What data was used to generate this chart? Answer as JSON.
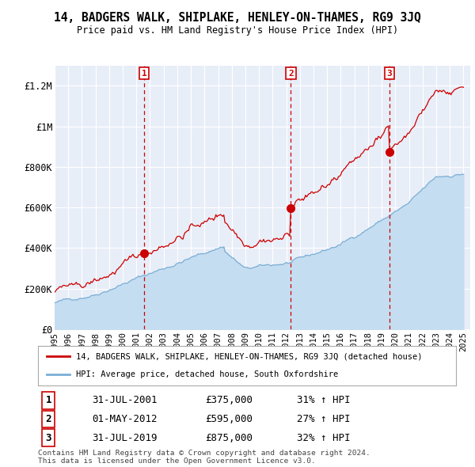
{
  "title": "14, BADGERS WALK, SHIPLAKE, HENLEY-ON-THAMES, RG9 3JQ",
  "subtitle": "Price paid vs. HM Land Registry's House Price Index (HPI)",
  "ylim": [
    0,
    1300000
  ],
  "yticks": [
    0,
    200000,
    400000,
    600000,
    800000,
    1000000,
    1200000
  ],
  "ytick_labels": [
    "£0",
    "£200K",
    "£400K",
    "£600K",
    "£800K",
    "£1M",
    "£1.2M"
  ],
  "sale_prices": [
    375000,
    595000,
    875000
  ],
  "sale_labels": [
    "1",
    "2",
    "3"
  ],
  "sale_year_floats": [
    2001.583,
    2012.333,
    2019.583
  ],
  "sale_date_strs": [
    "31-JUL-2001",
    "01-MAY-2012",
    "31-JUL-2019"
  ],
  "sale_price_strs": [
    "£375,000",
    "£595,000",
    "£875,000"
  ],
  "sale_hpi_strs": [
    "31% ↑ HPI",
    "27% ↑ HPI",
    "32% ↑ HPI"
  ],
  "hpi_color": "#7aaed6",
  "hpi_fill_color": "#c5ddf0",
  "sale_color": "#cc0000",
  "legend_label_sale": "14, BADGERS WALK, SHIPLAKE, HENLEY-ON-THAMES, RG9 3JQ (detached house)",
  "legend_label_hpi": "HPI: Average price, detached house, South Oxfordshire",
  "footnote": "Contains HM Land Registry data © Crown copyright and database right 2024.\nThis data is licensed under the Open Government Licence v3.0.",
  "background_color": "#ffffff",
  "plot_bg_color": "#e8eef8"
}
